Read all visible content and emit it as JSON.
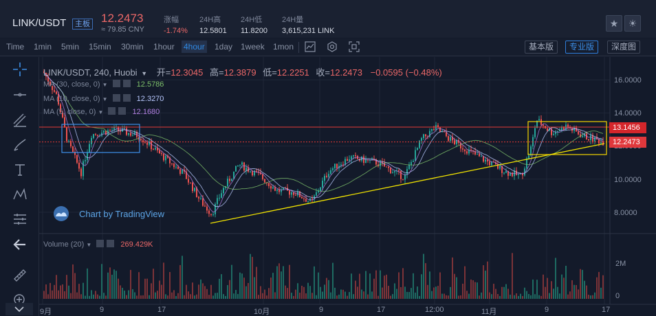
{
  "header": {
    "pair": "LINK/USDT",
    "main_badge": "主板",
    "price": "12.2473",
    "cny": "≈ 79.85 CNY",
    "stats": [
      {
        "label": "涨幅",
        "value": "-1.74%",
        "negative": true
      },
      {
        "label": "24H高",
        "value": "12.5801",
        "negative": false
      },
      {
        "label": "24H低",
        "value": "11.8200",
        "negative": false
      },
      {
        "label": "24H量",
        "value": "3,615,231 LINK",
        "negative": false
      }
    ]
  },
  "toolbar": {
    "timeframes": [
      "Time",
      "1min",
      "5min",
      "15min",
      "30min",
      "1hour",
      "4hour",
      "1day",
      "1week",
      "1mon"
    ],
    "active_timeframe": "4hour",
    "views": [
      "基本版",
      "专业版",
      "深度图"
    ],
    "active_view": "专业版"
  },
  "legend": {
    "symbol": "LINK/USDT, 240, Huobi",
    "open_label": "开=",
    "open": "12.3045",
    "high_label": "高=",
    "high": "12.3879",
    "low_label": "低=",
    "low": "12.2251",
    "close_label": "收=",
    "close": "12.2473",
    "change": "−0.0595 (−0.48%)",
    "ma": [
      {
        "text": "MA (30, close, 0)",
        "value": "12.5786",
        "color": "#7fc36b"
      },
      {
        "text": "MA (10, close, 0)",
        "value": "12.3270",
        "color": "#b9c9ff"
      },
      {
        "text": "MA (5, close, 0)",
        "value": "12.1680",
        "color": "#b07fe0"
      }
    ],
    "volume_text": "Volume (20)",
    "volume_value": "269.429K"
  },
  "watermark": "Chart by TradingView",
  "price_axis": {
    "ticks": [
      "16.0000",
      "14.0000",
      "12.0000",
      "10.0000",
      "8.0000"
    ],
    "tick_values": [
      16,
      14,
      12,
      10,
      8
    ],
    "tag_resistance": "13.1456",
    "tag_resistance_value": 13.1456,
    "tag_last": "12.2473",
    "tag_last_value": 12.2473
  },
  "volume_axis": {
    "ticks": [
      "2M",
      "0"
    ]
  },
  "time_axis": [
    "9月",
    "9",
    "17",
    "10月",
    "9",
    "17",
    "12:00",
    "11月",
    "9",
    "17"
  ],
  "colors": {
    "up": "#26a69a",
    "down": "#ef5350",
    "trend": "#f2e400",
    "resistance": "#e53935",
    "accent": "#2f8ae6"
  }
}
